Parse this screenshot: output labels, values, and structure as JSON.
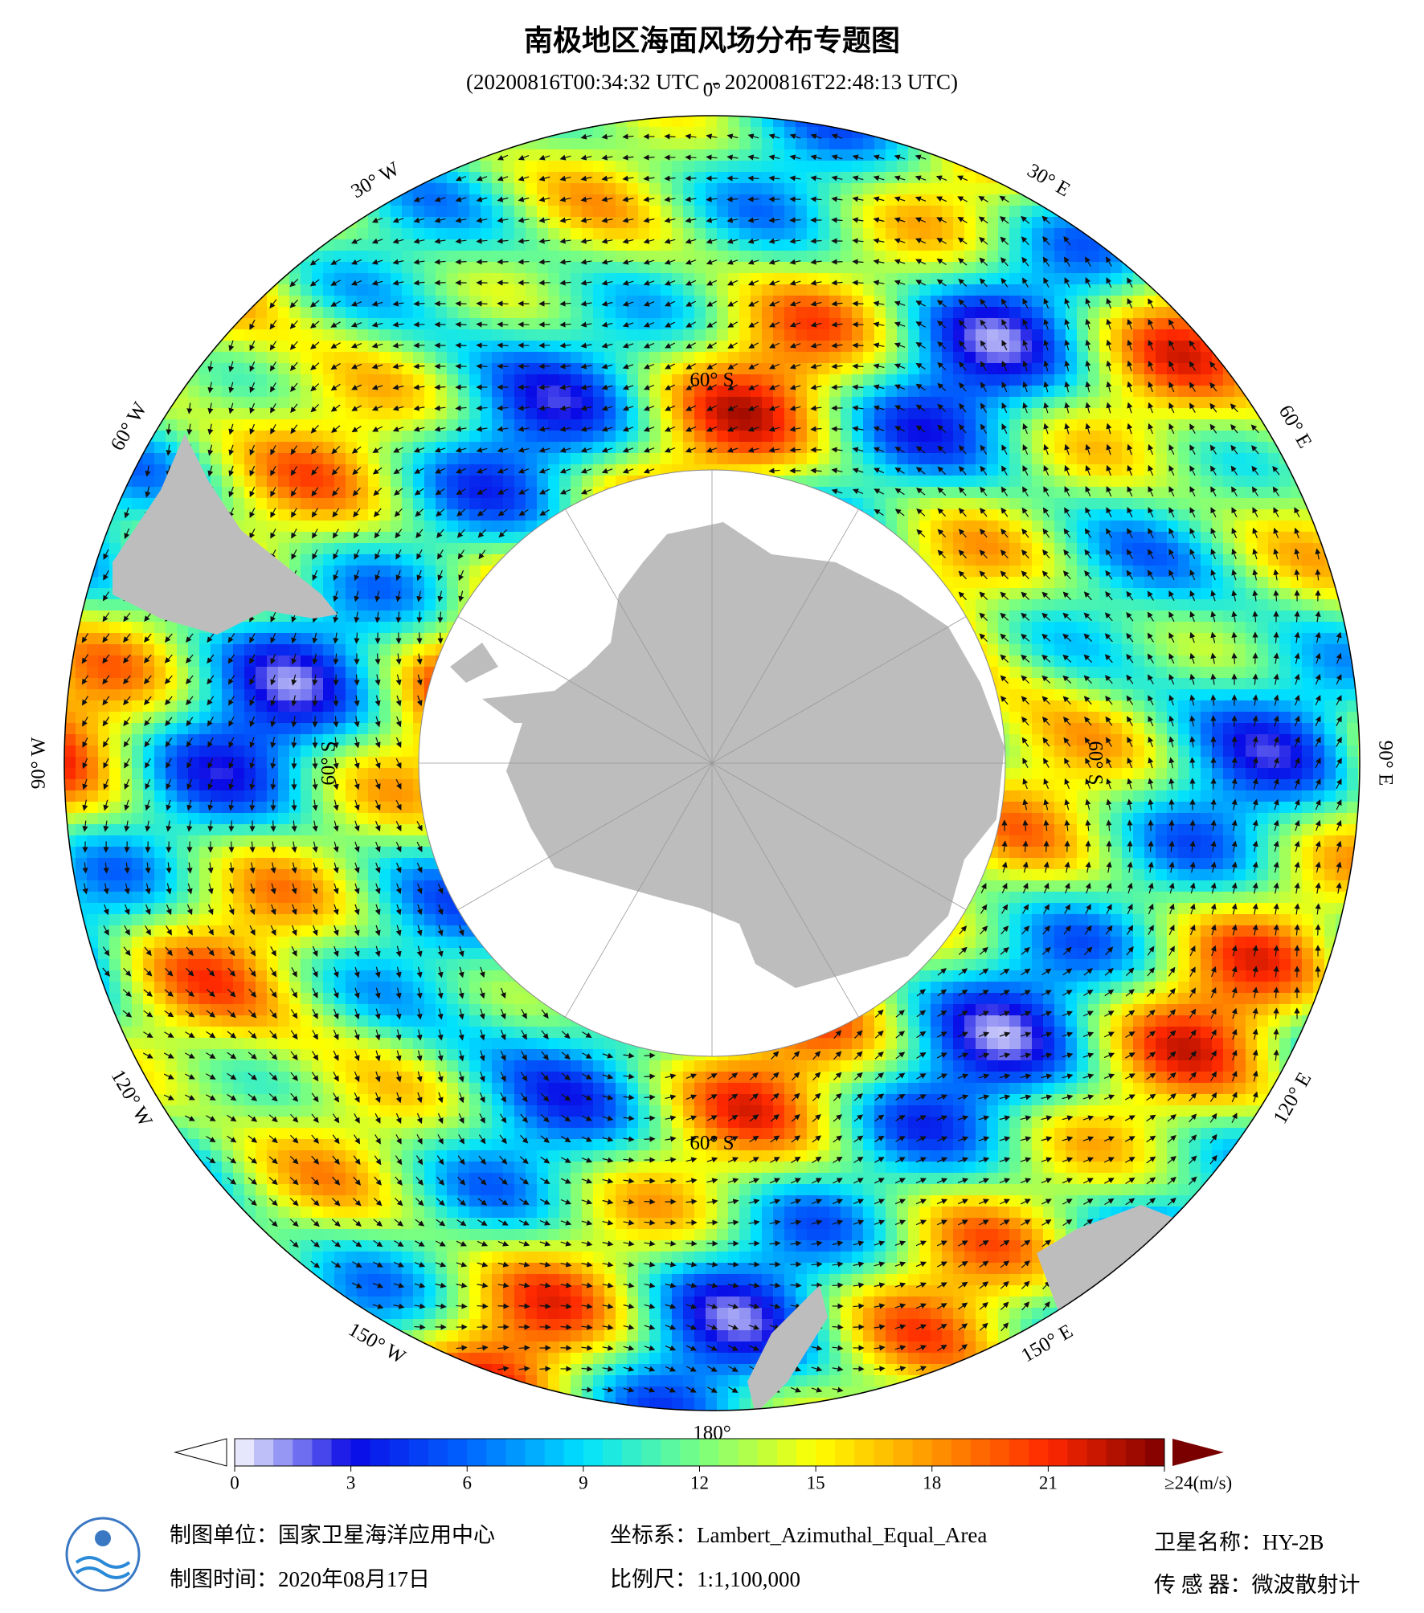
{
  "header": {
    "title": "南极地区海面风场分布专题图",
    "subtitle": "(20200816T00:34:32 UTC -- 20200816T22:48:13 UTC)"
  },
  "map": {
    "longitude_labels": [
      "0°",
      "30° E",
      "60° E",
      "90° E",
      "120° E",
      "150° E",
      "180°",
      "150° W",
      "120° W",
      "90° W",
      "60° W",
      "30° W"
    ],
    "latitude_labels": [
      "60° S",
      "60° S",
      "60° S",
      "60° S"
    ]
  },
  "colorbar": {
    "lim": [
      0,
      24
    ],
    "ticks": [
      0,
      3,
      6,
      9,
      12,
      15,
      18,
      21,
      {
        "value": 24,
        "label": "≥24(m/s)"
      }
    ]
  },
  "footer": {
    "organization": "制图单位：国家卫星海洋应用中心",
    "date": "制图时间：2020年08月17日",
    "projection": "坐标系：Lambert_Azimuthal_Equal_Area",
    "scale": "比例尺：1:1,100,000",
    "satellite": "卫星名称：HY-2B",
    "sensor": "传 感 器：微波散射计"
  }
}
